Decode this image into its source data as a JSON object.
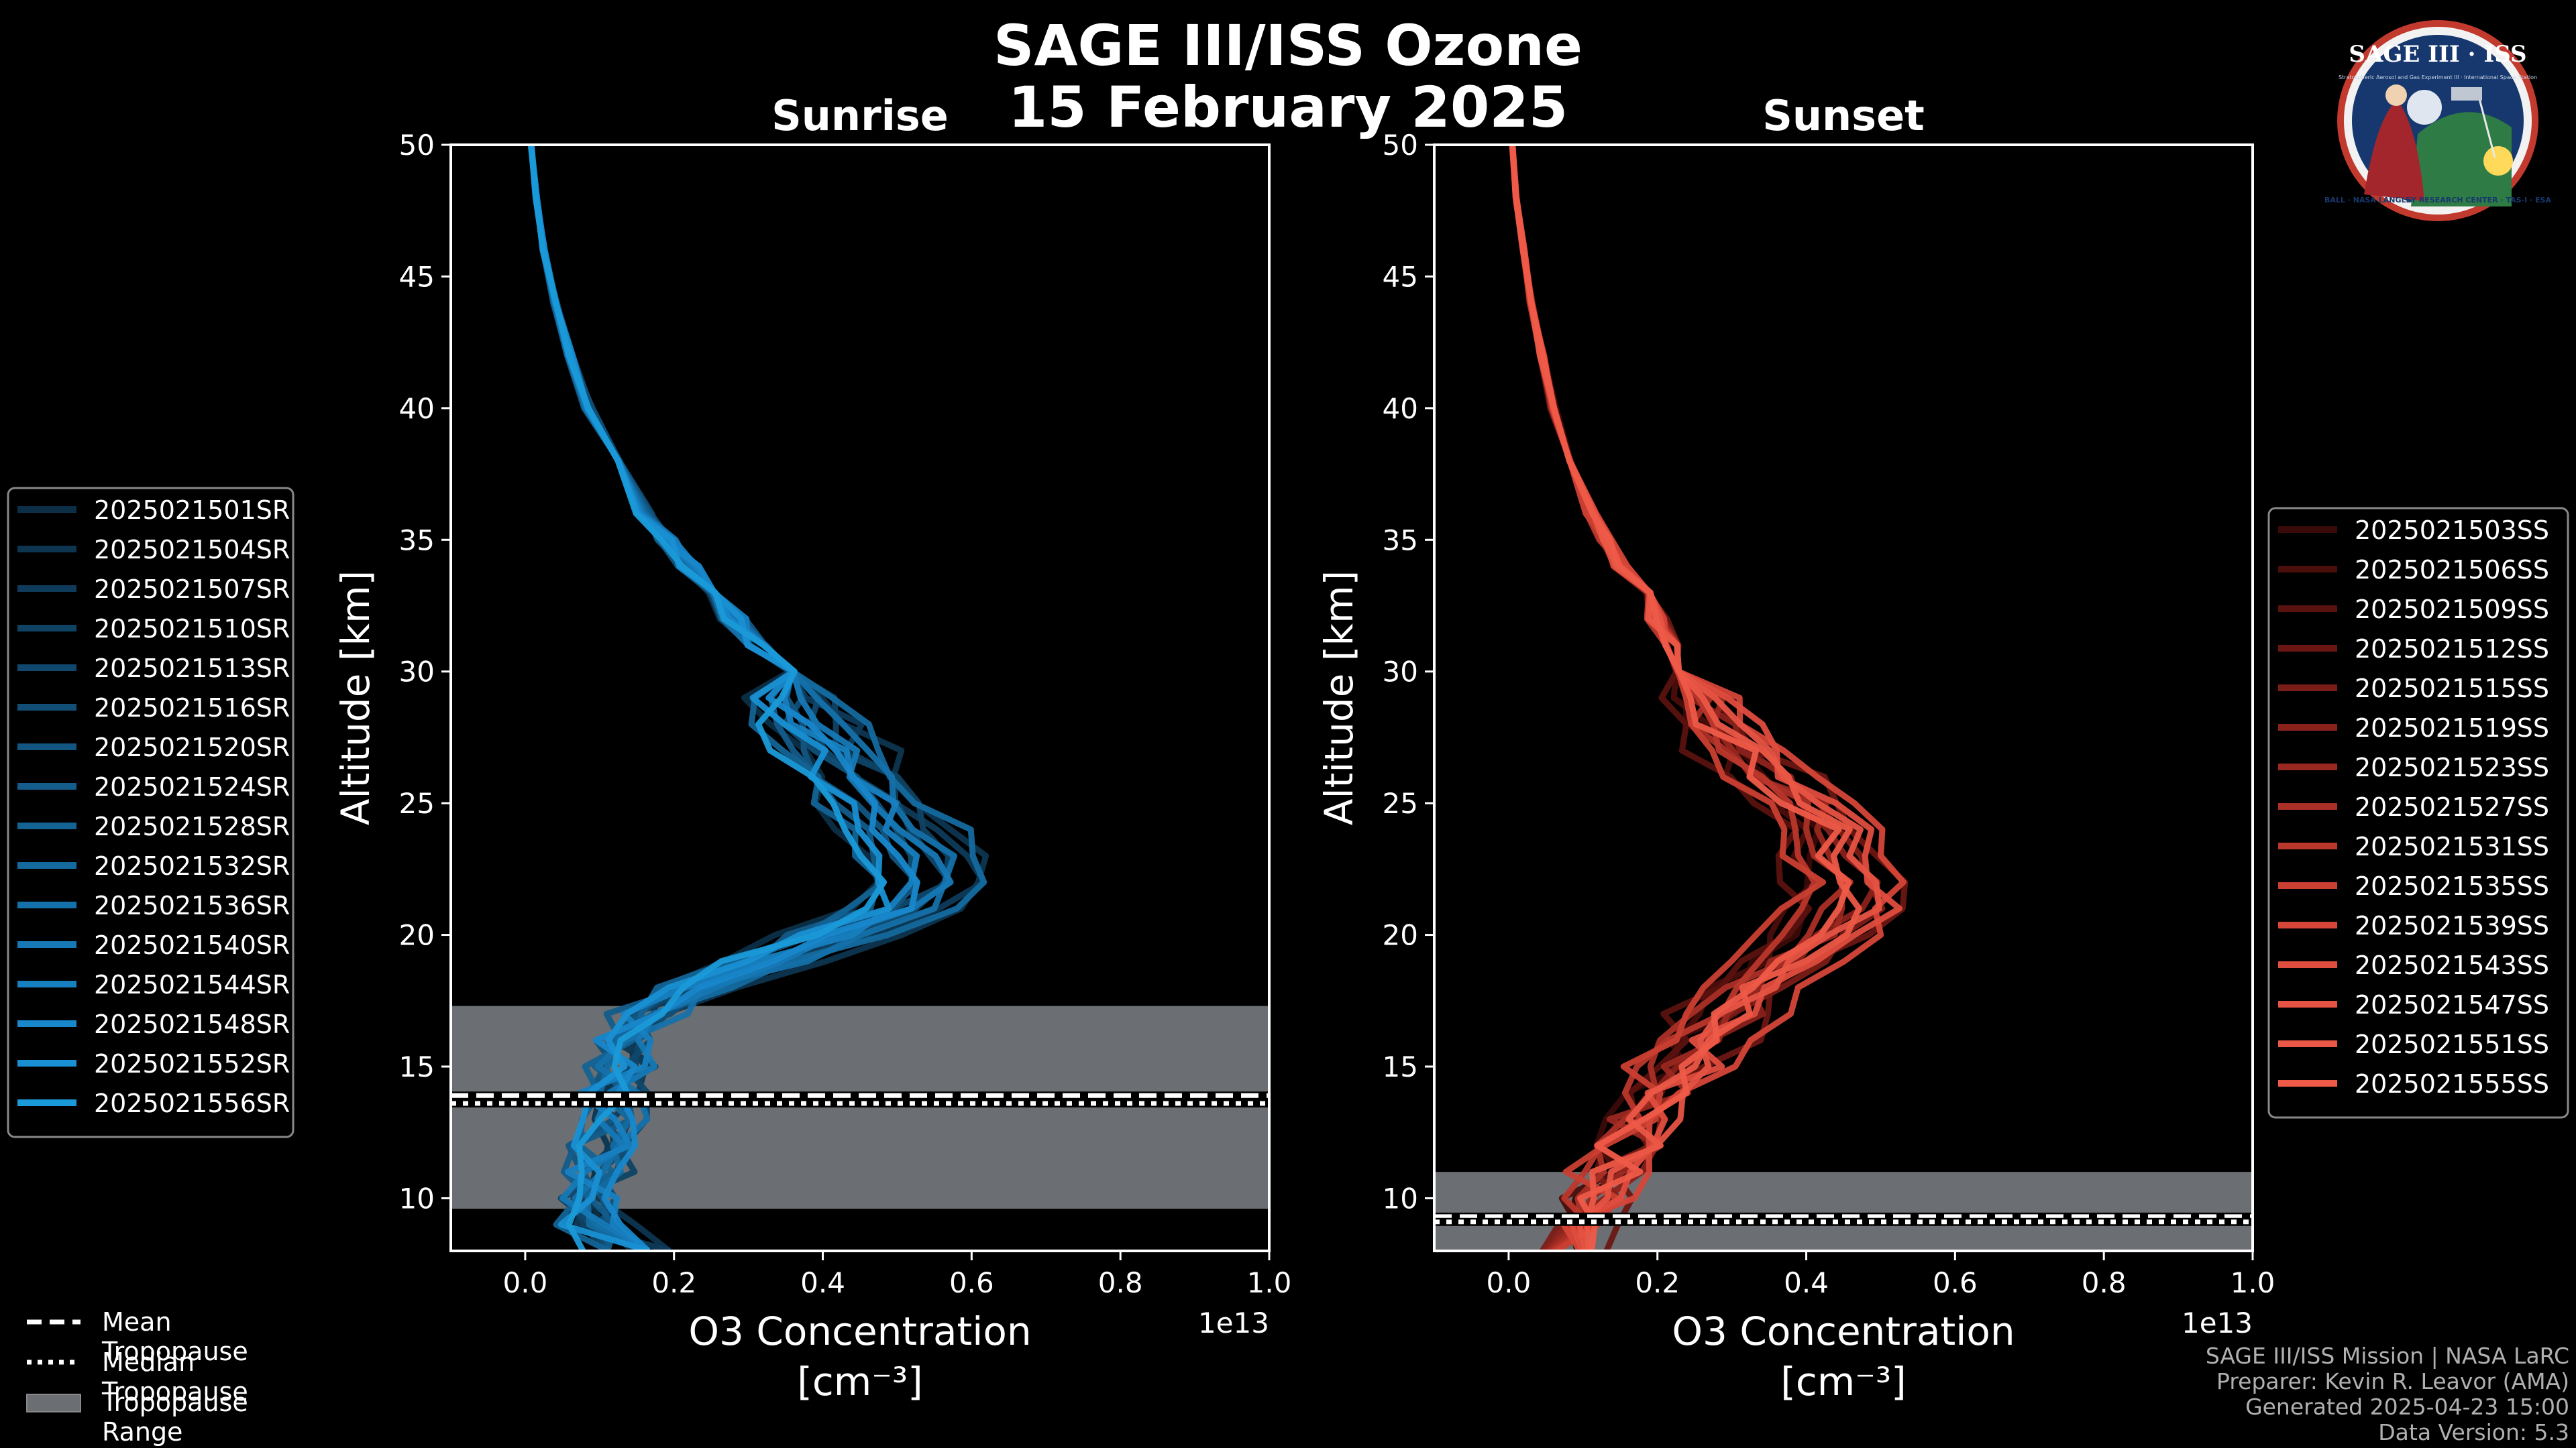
{
  "title_line1": "SAGE III/ISS Ozone",
  "title_line2": "15 February 2025",
  "footer": {
    "line1": "SAGE III/ISS Mission | NASA LaRC",
    "line2": "Preparer: Kevin R. Leavor (AMA)",
    "line3": "Generated 2025-04-23 15:00",
    "line4": "Data Version: 5.3"
  },
  "logo": {
    "text": "SAGE III · ISS",
    "subtitle": "Stratospheric Aerosol and Gas Experiment III · International Space Station",
    "ring_text": "BALL · NASA LANGLEY RESEARCH CENTER · TAS-I · ESA"
  },
  "bottom_legend": [
    {
      "label": "Mean Tropopause",
      "style": "dashed"
    },
    {
      "label": "Median Tropopause",
      "style": "dotted"
    },
    {
      "label": "Tropopause Range",
      "style": "patch"
    }
  ],
  "colors": {
    "sunrise": "#1a9ad8",
    "sunset": "#ef5a48",
    "tropopause_fill": "#6b6e72",
    "background": "#000000"
  },
  "chart_data": [
    {
      "type": "line",
      "title": "Sunrise",
      "xlabel": "O3 Concentration",
      "xlabel_units": "[cm⁻³]",
      "ylabel": "Altitude [km]",
      "xlim": [
        -0.1,
        1.0
      ],
      "ylim": [
        8,
        50
      ],
      "x_scale_label": "1e13",
      "xticks": [
        "0.0",
        "0.2",
        "0.4",
        "0.6",
        "0.8",
        "1.0"
      ],
      "yticks": [
        "10",
        "15",
        "20",
        "25",
        "30",
        "35",
        "40",
        "45",
        "50"
      ],
      "tropopause": {
        "min": 9.6,
        "max": 17.3,
        "mean": 13.9,
        "median": 13.6
      },
      "altitudes": [
        8,
        9,
        10,
        11,
        12,
        13,
        14,
        15,
        16,
        17,
        18,
        19,
        20,
        21,
        22,
        23,
        24,
        25,
        26,
        27,
        28,
        29,
        30,
        31,
        32,
        33,
        34,
        35,
        36,
        38,
        40,
        42,
        44,
        46,
        48,
        50
      ],
      "mean_profile": [
        0.14,
        0.1,
        0.09,
        0.1,
        0.11,
        0.12,
        0.12,
        0.13,
        0.14,
        0.17,
        0.24,
        0.33,
        0.43,
        0.52,
        0.55,
        0.54,
        0.51,
        0.48,
        0.45,
        0.42,
        0.39,
        0.37,
        0.34,
        0.31,
        0.28,
        0.25,
        0.22,
        0.19,
        0.16,
        0.12,
        0.085,
        0.06,
        0.04,
        0.025,
        0.015,
        0.008
      ],
      "legend": [
        "2025021501SR",
        "2025021504SR",
        "2025021507SR",
        "2025021510SR",
        "2025021513SR",
        "2025021516SR",
        "2025021520SR",
        "2025021524SR",
        "2025021528SR",
        "2025021532SR",
        "2025021536SR",
        "2025021540SR",
        "2025021544SR",
        "2025021548SR",
        "2025021552SR",
        "2025021556SR"
      ],
      "series_colors": [
        "#0c2f47",
        "#0d3550",
        "#0e3b5a",
        "#0f4263",
        "#10486d",
        "#114f77",
        "#125581",
        "#135c8b",
        "#136395",
        "#146a9f",
        "#1571aa",
        "#1678b5",
        "#1780c0",
        "#1887cb",
        "#1990d3",
        "#1a9ad8"
      ]
    },
    {
      "type": "line",
      "title": "Sunset",
      "xlabel": "O3 Concentration",
      "xlabel_units": "[cm⁻³]",
      "ylabel": "Altitude [km]",
      "xlim": [
        -0.1,
        1.0
      ],
      "ylim": [
        8,
        50
      ],
      "x_scale_label": "1e13",
      "xticks": [
        "0.0",
        "0.2",
        "0.4",
        "0.6",
        "0.8",
        "1.0"
      ],
      "yticks": [
        "10",
        "15",
        "20",
        "25",
        "30",
        "35",
        "40",
        "45",
        "50"
      ],
      "tropopause": {
        "min": 8.0,
        "max": 11.0,
        "mean": 9.3,
        "median": 9.1
      },
      "altitudes": [
        8,
        9,
        10,
        11,
        12,
        13,
        14,
        15,
        16,
        17,
        18,
        19,
        20,
        21,
        22,
        23,
        24,
        25,
        26,
        27,
        28,
        29,
        30,
        31,
        32,
        33,
        34,
        35,
        36,
        38,
        40,
        42,
        44,
        46,
        48,
        50
      ],
      "mean_profile": [
        0.08,
        0.1,
        0.12,
        0.14,
        0.16,
        0.18,
        0.2,
        0.23,
        0.26,
        0.29,
        0.33,
        0.38,
        0.42,
        0.45,
        0.46,
        0.45,
        0.43,
        0.4,
        0.35,
        0.31,
        0.28,
        0.26,
        0.24,
        0.22,
        0.2,
        0.18,
        0.15,
        0.13,
        0.11,
        0.085,
        0.06,
        0.045,
        0.03,
        0.02,
        0.01,
        0.005
      ],
      "legend": [
        "2025021503SS",
        "2025021506SS",
        "2025021509SS",
        "2025021512SS",
        "2025021515SS",
        "2025021519SS",
        "2025021523SS",
        "2025021527SS",
        "2025021531SS",
        "2025021535SS",
        "2025021539SS",
        "2025021543SS",
        "2025021547SS",
        "2025021551SS",
        "2025021555SS"
      ],
      "series_colors": [
        "#3a0a08",
        "#4a0e0b",
        "#5a120f",
        "#6a1713",
        "#7a1c17",
        "#8a211b",
        "#9a2820",
        "#aa2f26",
        "#ba372c",
        "#c93f32",
        "#d54638",
        "#df4d3e",
        "#e65343",
        "#eb5746",
        "#ef5a48"
      ]
    }
  ]
}
